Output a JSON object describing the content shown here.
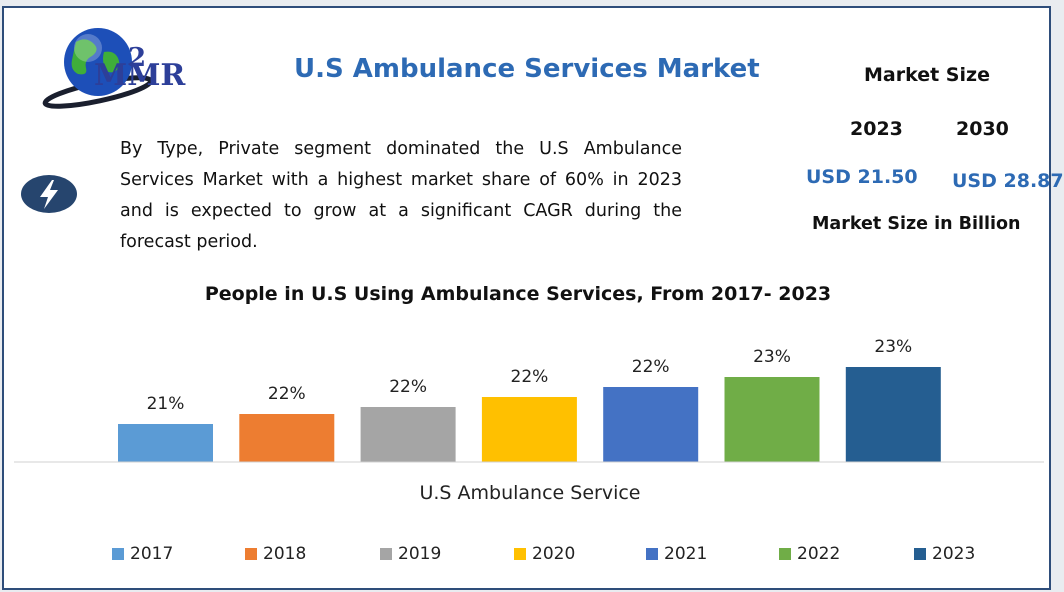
{
  "header": {
    "logo_text": "MMR",
    "title": "U.S Ambulance Services Market"
  },
  "description": "By Type, Private segment dominated the U.S Ambulance Services Market with a highest market share of 60% in 2023 and is expected to grow at a significant CAGR during the forecast period.",
  "market_size": {
    "title": "Market Size",
    "year_1": "2023",
    "year_2": "2030",
    "value_1": "USD 21.50",
    "value_2": "USD 28.87",
    "unit_label": "Market Size in Billion"
  },
  "chart_data": {
    "type": "bar",
    "title": "People in U.S Using Ambulance Services, From 2017- 2023",
    "xlabel": "U.S Ambulance Service",
    "ylabel": "",
    "series": [
      {
        "name": "2017",
        "value": 21,
        "label": "21%",
        "color": "#5b9bd5"
      },
      {
        "name": "2018",
        "value": 22,
        "label": "22%",
        "color": "#ed7d31"
      },
      {
        "name": "2019",
        "value": 22,
        "label": "22%",
        "color": "#a5a5a5"
      },
      {
        "name": "2020",
        "value": 22,
        "label": "22%",
        "color": "#ffc000"
      },
      {
        "name": "2021",
        "value": 22,
        "label": "22%",
        "color": "#4472c4"
      },
      {
        "name": "2022",
        "value": 23,
        "label": "23%",
        "color": "#70ad47"
      },
      {
        "name": "2023",
        "value": 23,
        "label": "23%",
        "color": "#255e91"
      }
    ],
    "legend_position": "bottom",
    "grid": false
  },
  "icons": {
    "globe": "globe-icon",
    "bolt": "lightning-bolt-icon"
  },
  "colors": {
    "brand": "#2d3f99",
    "title": "#2d6ab4",
    "border": "#2e4d7a"
  }
}
